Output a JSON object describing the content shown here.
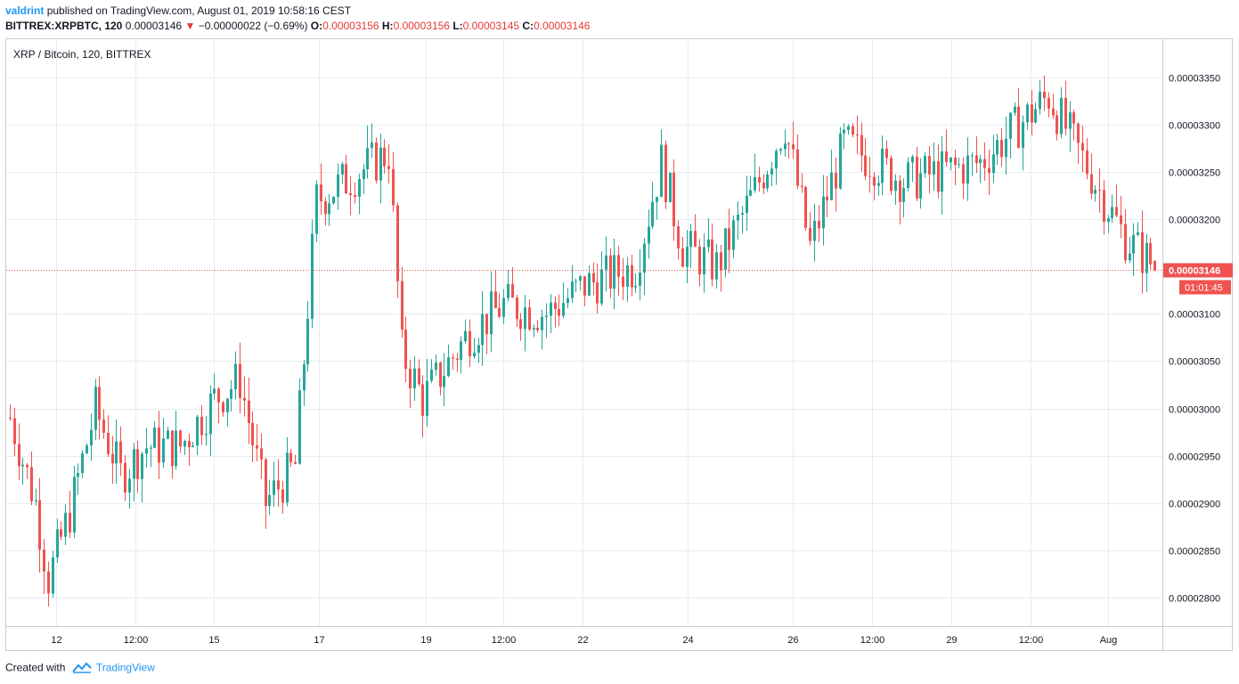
{
  "header": {
    "author": "valdrint",
    "published_text": "published on TradingView.com, August 01, 2019 10:58:16 CEST",
    "symbol": "BITTREX:XRPBTC, 120",
    "last": "0.00003146",
    "change_arrow": "▼",
    "change": "−0.00000022 (−0.69%)",
    "o_label": "O:",
    "o_value": "0.00003156",
    "h_label": "H:",
    "h_value": "0.00003156",
    "l_label": "L:",
    "l_value": "0.00003145",
    "c_label": "C:",
    "c_value": "0.00003146"
  },
  "chart_title": "XRP / Bitcoin, 120, BITTREX",
  "footer": {
    "created_with": "Created with",
    "brand": "TradingView"
  },
  "colors": {
    "up": "#26a69a",
    "down": "#ef5350",
    "grid": "#e6ecf1",
    "price_line": "#ef5350",
    "axis_text": "#131722"
  },
  "chart_data": {
    "type": "candlestick",
    "title": "XRP / Bitcoin, 120, BITTREX",
    "ylim": [
      2.77e-05,
      3.39e-05
    ],
    "y_ticks": [
      "0.00003350",
      "0.00003300",
      "0.00003250",
      "0.00003200",
      "0.00003100",
      "0.00003050",
      "0.00003000",
      "0.00002950",
      "0.00002900",
      "0.00002850",
      "0.00002800"
    ],
    "x_ticks": [
      "12",
      "12:00",
      "15",
      "17",
      "19",
      "12:00",
      "22",
      "24",
      "26",
      "12:00",
      "29",
      "12:00",
      "Aug"
    ],
    "grid": true,
    "current_price": "0.00003146",
    "countdown": "01:01:45",
    "bar_count": 150,
    "keypoints": [
      [
        0,
        2.99e-05
      ],
      [
        6,
        2.9e-05
      ],
      [
        9,
        2.82e-05
      ],
      [
        14,
        2.89e-05
      ],
      [
        20,
        3e-05
      ],
      [
        26,
        2.93e-05
      ],
      [
        32,
        2.96e-05
      ],
      [
        40,
        2.96e-05
      ],
      [
        48,
        3.01e-05
      ],
      [
        54,
        3.03e-05
      ],
      [
        60,
        2.9e-05
      ],
      [
        67,
        2.94e-05
      ],
      [
        72,
        3.22e-05
      ],
      [
        82,
        3.25e-05
      ],
      [
        89,
        3.27e-05
      ],
      [
        92,
        3.06e-05
      ],
      [
        97,
        3.01e-05
      ],
      [
        108,
        3.08e-05
      ],
      [
        116,
        3.11e-05
      ],
      [
        126,
        3.1e-05
      ],
      [
        135,
        3.13e-05
      ],
      [
        147,
        3.15e-05
      ],
      [
        153,
        3.26e-05
      ],
      [
        158,
        3.17e-05
      ],
      [
        166,
        3.15e-05
      ],
      [
        175,
        3.23e-05
      ],
      [
        182,
        3.3e-05
      ],
      [
        188,
        3.17e-05
      ],
      [
        196,
        3.28e-05
      ],
      [
        210,
        3.24e-05
      ],
      [
        228,
        3.26e-05
      ],
      [
        244,
        3.33e-05
      ],
      [
        262,
        3.18e-05
      ],
      [
        269,
        3.15e-05
      ],
      [
        270,
        3.14e-05
      ]
    ]
  }
}
